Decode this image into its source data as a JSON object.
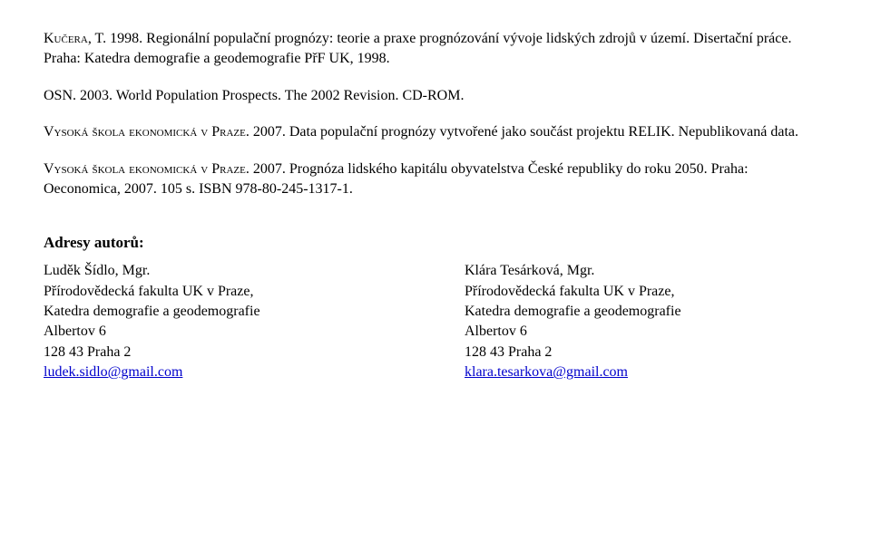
{
  "refs": [
    {
      "author_sc": "Kučera",
      "rest": ", T. 1998. Regionální populační prognózy: teorie a praxe prognózování vývoje lidských zdrojů v území. Disertační práce. Praha: Katedra demografie a geodemografie PřF UK, 1998."
    },
    {
      "author_sc": "",
      "rest": "OSN. 2003. World Population Prospects. The 2002 Revision. CD-ROM."
    },
    {
      "author_sc": "Vysoká škola ekonomická v Praze",
      "rest": ". 2007. Data populační prognózy vytvořené jako součást projektu RELIK. Nepublikovaná data."
    },
    {
      "author_sc": "Vysoká škola ekonomická v Praze",
      "rest": ". 2007. Prognóza lidského kapitálu obyvatelstva České republiky do roku 2050. Praha: Oeconomica, 2007. 105 s. ISBN 978-80-245-1317-1."
    }
  ],
  "addresses_title": "Adresy autorů:",
  "authors": [
    {
      "name": "Luděk Šídlo, Mgr.",
      "line1": "Přírodovědecká fakulta UK v Praze,",
      "line2": "Katedra demografie a geodemografie",
      "line3": "Albertov 6",
      "line4": "128 43 Praha 2",
      "email": "ludek.sidlo@gmail.com"
    },
    {
      "name": "Klára Tesárková, Mgr.",
      "line1": "Přírodovědecká fakulta UK v Praze,",
      "line2": "Katedra demografie a geodemografie",
      "line3": "Albertov 6",
      "line4": "128 43 Praha 2",
      "email": "klara.tesarkova@gmail.com"
    }
  ]
}
